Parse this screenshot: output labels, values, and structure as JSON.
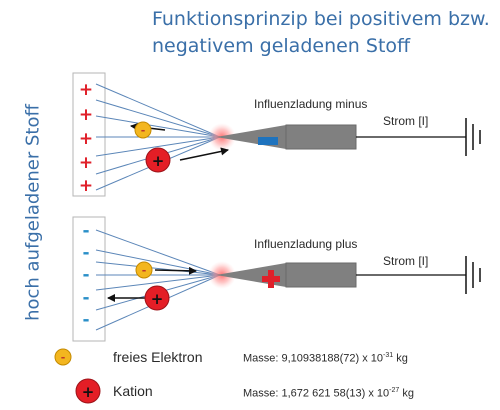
{
  "title": {
    "line1": "Funktionsprinzip bei positivem bzw.",
    "line2": "negativem geladenen Stoff"
  },
  "side_label": "hoch aufgeladener Stoff",
  "panel_top": {
    "charge_symbol": "+",
    "influence_label": "Influenzladung minus",
    "current_label": "Strom [I]"
  },
  "panel_bottom": {
    "charge_symbol": "-",
    "influence_label": "Influenzladung plus",
    "current_label": "Strom [I]"
  },
  "particle_symbols": {
    "electron": "-",
    "cation": "+"
  },
  "legend": {
    "electron_label": "freies Elektron",
    "electron_mass_prefix": "Masse: 9,10938188(72) x 10",
    "electron_mass_exp": "-31",
    "electron_mass_unit": " kg",
    "cation_label": "Kation",
    "cation_mass_prefix": "Masse: 1,672 621 58(13) x 10",
    "cation_mass_exp": "-27",
    "cation_mass_unit": " kg"
  },
  "colors": {
    "title": "#3a6fa8",
    "plus": "#e0202a",
    "minus": "#2a8fc8",
    "electron_fill": "#f3b61f",
    "cation_fill": "#e41e26",
    "electrode": "#808080",
    "field_line": "#5b86b8"
  }
}
